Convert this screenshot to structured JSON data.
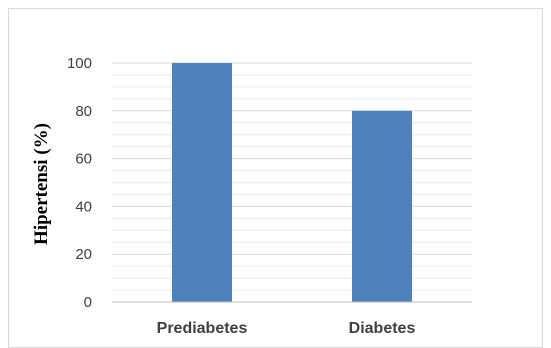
{
  "chart_data": {
    "type": "bar",
    "categories": [
      "Prediabetes",
      "Diabetes"
    ],
    "values": [
      100,
      80
    ],
    "title": "",
    "xlabel": "",
    "ylabel": "Hipertensi (%)",
    "ylim": [
      0,
      100
    ],
    "yticks": [
      0,
      20,
      40,
      60,
      80,
      100
    ],
    "grid": true,
    "legend": "none",
    "colors": {
      "bar": "#4f81bd",
      "major_grid": "#d9d9d9",
      "minor_grid": "#ececec",
      "axis": "#bfbfbf"
    }
  }
}
